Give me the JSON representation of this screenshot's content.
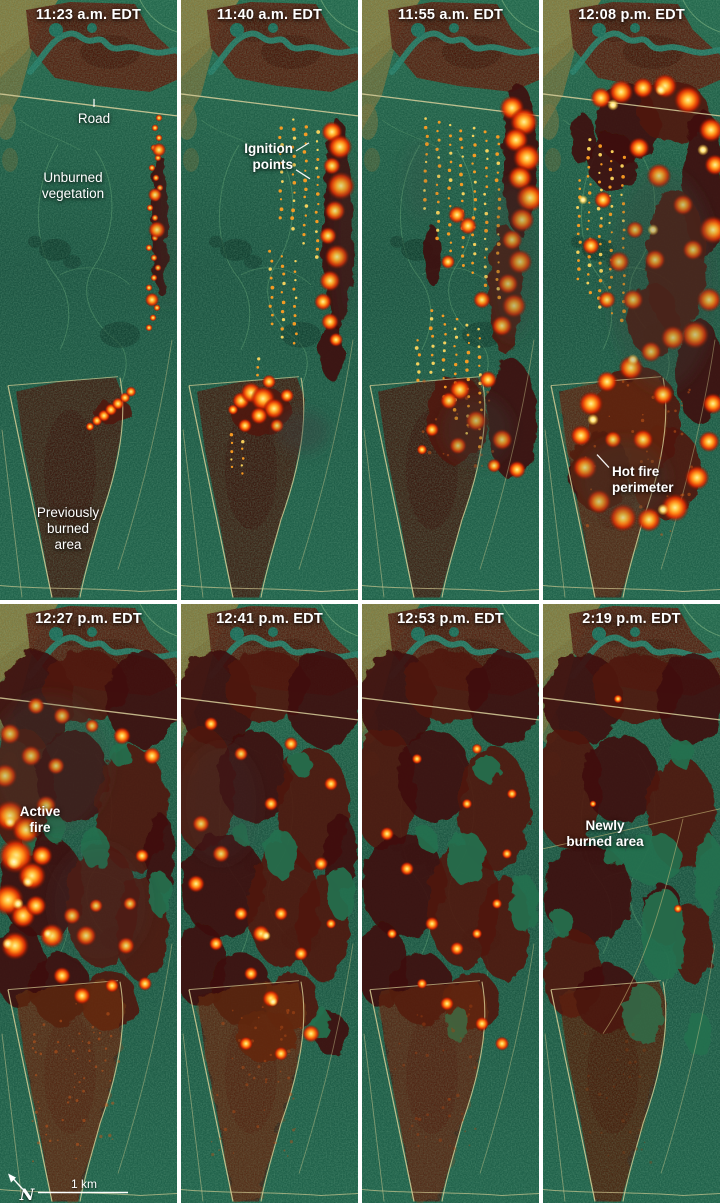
{
  "panels": [
    {
      "id": "p1",
      "time": "11:23 a.m. EDT",
      "annotations": [
        {
          "id": "road",
          "text": "Road"
        },
        {
          "id": "unburned",
          "text": "Unburned\nvegetation"
        },
        {
          "id": "prev-burned",
          "text": "Previously\nburned\narea"
        }
      ]
    },
    {
      "id": "p2",
      "time": "11:40 a.m. EDT",
      "annotations": [
        {
          "id": "ignition",
          "text": "Ignition\npoints"
        }
      ]
    },
    {
      "id": "p3",
      "time": "11:55 a.m. EDT",
      "annotations": []
    },
    {
      "id": "p4",
      "time": "12:08 p.m. EDT",
      "annotations": [
        {
          "id": "hot-perimeter",
          "text": "Hot fire\nperimeter"
        }
      ]
    },
    {
      "id": "p5",
      "time": "12:27 p.m. EDT",
      "annotations": [
        {
          "id": "active-fire",
          "text": "Active\nfire"
        }
      ]
    },
    {
      "id": "p6",
      "time": "12:41 p.m. EDT",
      "annotations": []
    },
    {
      "id": "p7",
      "time": "12:53 p.m. EDT",
      "annotations": []
    },
    {
      "id": "p8",
      "time": "2:19 p.m. EDT",
      "annotations": [
        {
          "id": "newly-burned",
          "text": "Newly\nburned area"
        }
      ]
    }
  ],
  "map_marks": {
    "north_label": "N",
    "scale_label": "1 km"
  },
  "palette": {
    "vegetation": "#1e5c44",
    "water": "#1c6b58",
    "olive": "#8c7c3e",
    "burn_old": "#5a1f0f",
    "burn_new": "#4a150b",
    "fire": "#ff670a",
    "fire_hot": "#ffe27a",
    "road": "#d8cf9b",
    "label": "#ffffff"
  }
}
